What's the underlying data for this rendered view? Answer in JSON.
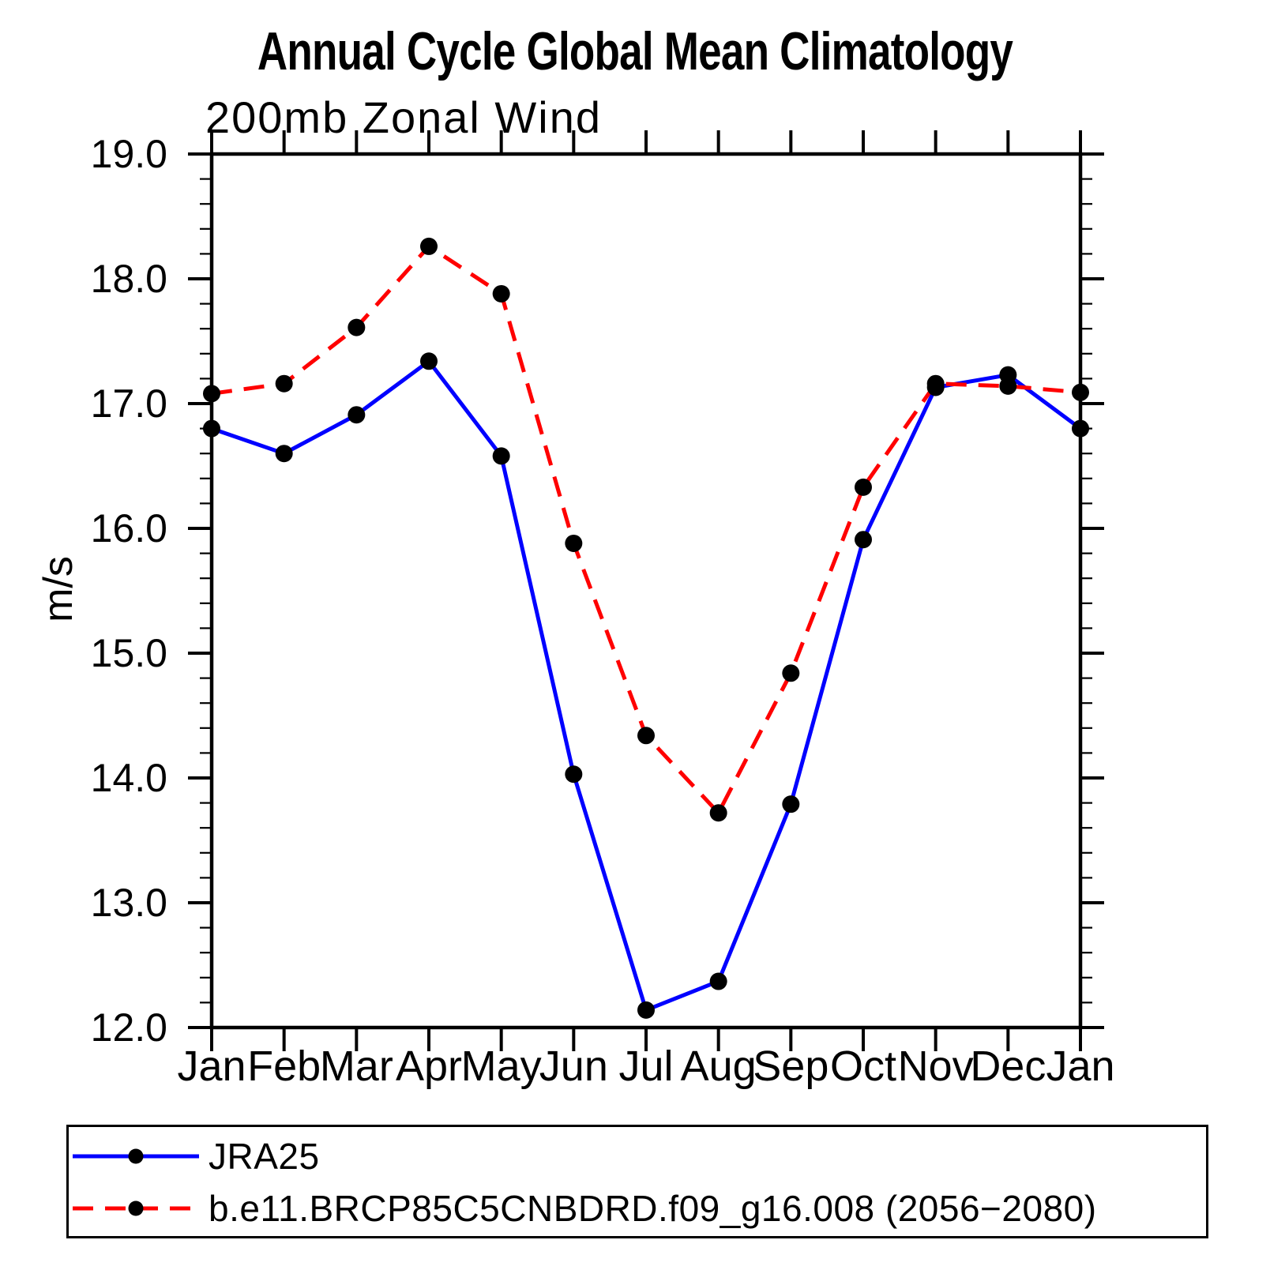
{
  "title": "Annual Cycle Global Mean Climatology",
  "subtitle": "200mb Zonal Wind",
  "y_axis_label": "m/s",
  "legend": {
    "items": [
      {
        "label": "JRA25",
        "color": "#0000ff",
        "line_style": "solid",
        "marker": "filled-circle",
        "marker_color": "#000000"
      },
      {
        "label": "b.e11.BRCP85C5CNBDRD.f09_g16.008 (2056−2080)",
        "color": "#ff0000",
        "line_style": "dashed",
        "marker": "filled-circle",
        "marker_color": "#000000"
      }
    ]
  },
  "chart_data": {
    "type": "line",
    "title": "Annual Cycle Global Mean Climatology",
    "subtitle": "200mb Zonal Wind",
    "xlabel": "",
    "ylabel": "m/s",
    "categories": [
      "Jan",
      "Feb",
      "Mar",
      "Apr",
      "May",
      "Jun",
      "Jul",
      "Aug",
      "Sep",
      "Oct",
      "Nov",
      "Dec",
      "Jan"
    ],
    "series": [
      {
        "name": "JRA25",
        "color": "#0000ff",
        "line_style": "solid",
        "marker_color": "#000000",
        "values": [
          16.8,
          16.6,
          16.91,
          17.34,
          16.58,
          14.03,
          12.14,
          12.37,
          13.79,
          15.91,
          17.13,
          17.23,
          16.8
        ]
      },
      {
        "name": "b.e11.BRCP85C5CNBDRD.f09_g16.008 (2056−2080)",
        "color": "#ff0000",
        "line_style": "dashed",
        "marker_color": "#000000",
        "values": [
          17.08,
          17.16,
          17.61,
          18.26,
          17.88,
          15.88,
          14.34,
          13.72,
          14.84,
          16.33,
          17.16,
          17.14,
          17.09
        ]
      }
    ],
    "ylim": [
      12.0,
      19.0
    ],
    "ytick_major_interval": 1.0,
    "ytick_minor_interval": 0.2,
    "ytick_label_format": "one_decimal",
    "grid": false,
    "axis_color": "#000000",
    "legend_position": "below-left"
  }
}
